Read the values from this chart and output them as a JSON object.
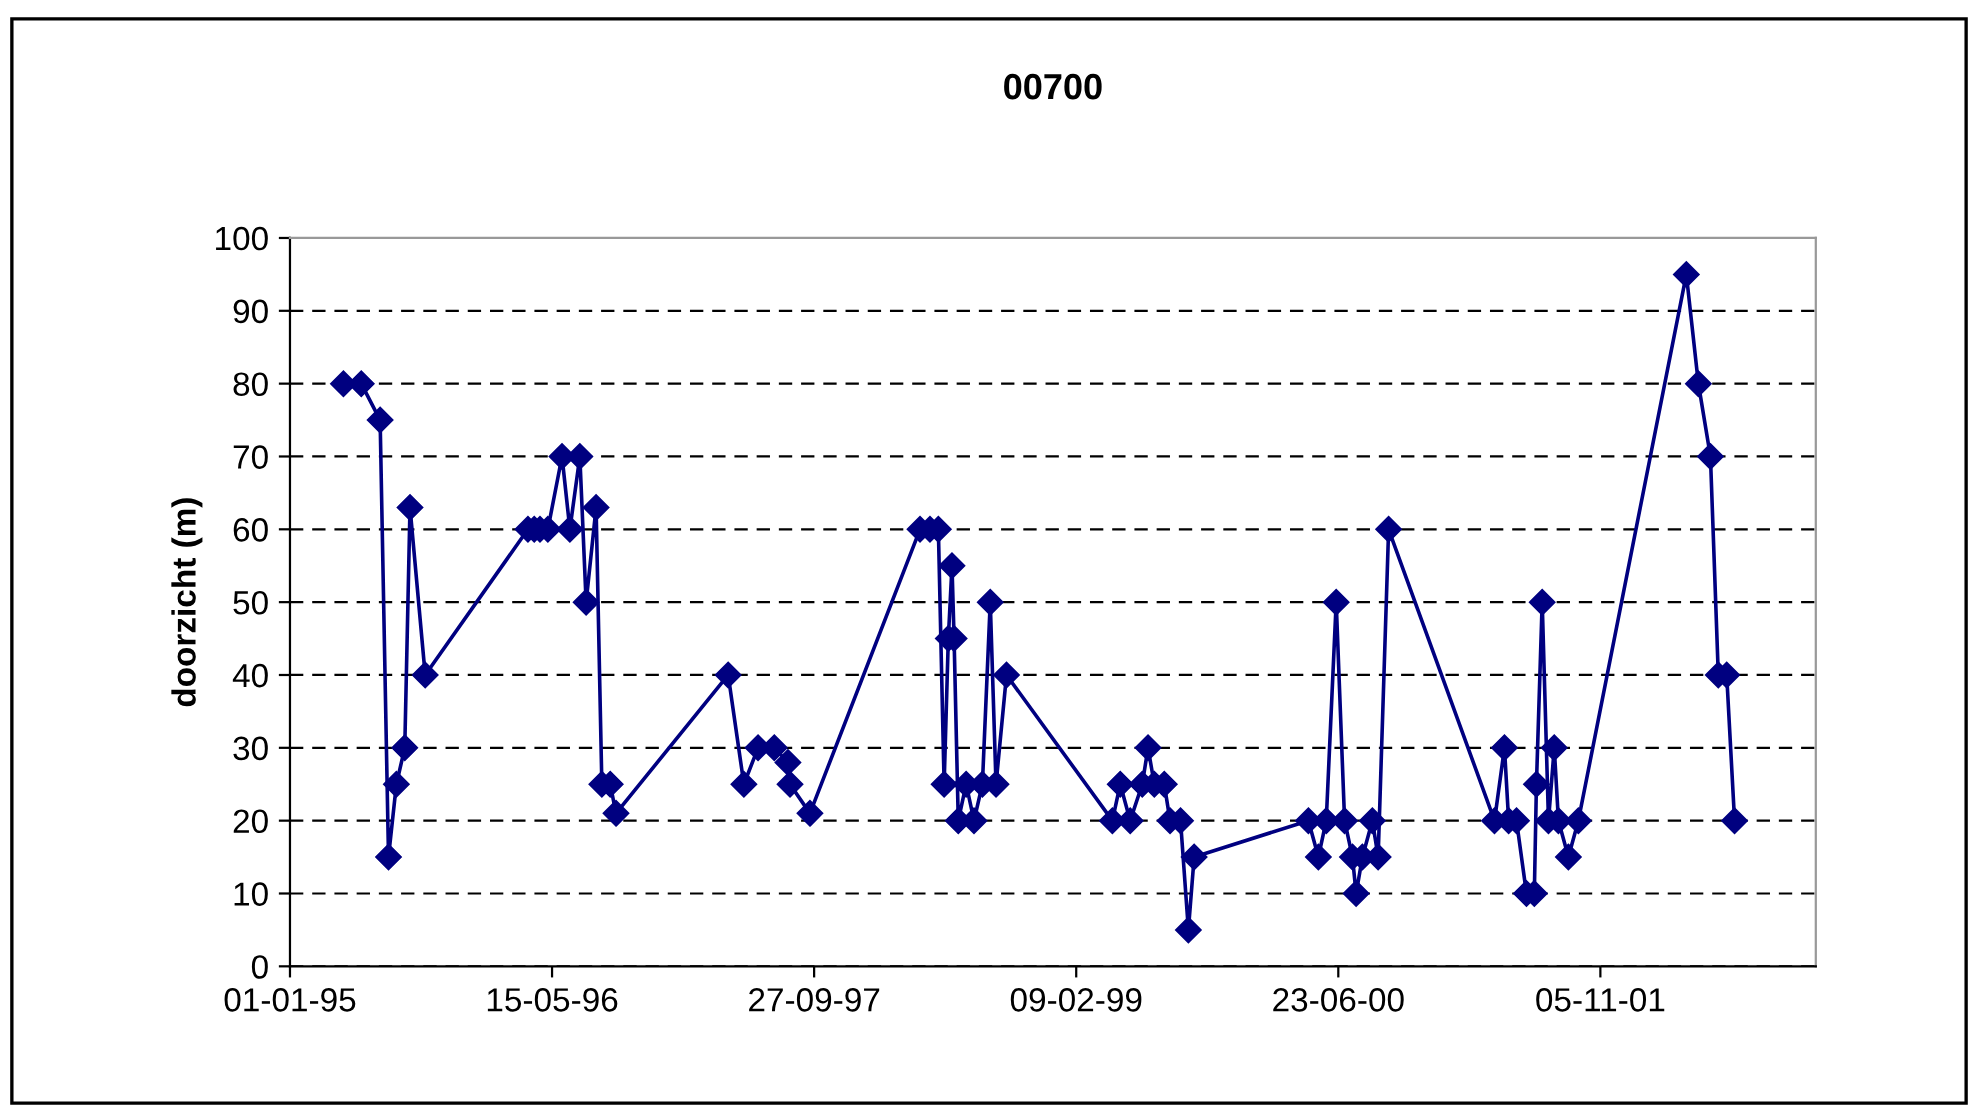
{
  "chart_data": {
    "type": "line",
    "title": "00700",
    "ylabel": "doorzicht (m)",
    "x": [
      "1995-04-13",
      "1995-05-17",
      "1995-06-22",
      "1995-07-08",
      "1995-07-23",
      "1995-08-08",
      "1995-08-18",
      "1995-09-16",
      "1996-03-30",
      "1996-04-11",
      "1996-04-22",
      "1996-05-07",
      "1996-06-03",
      "1996-06-18",
      "1996-07-07",
      "1996-07-19",
      "1996-08-07",
      "1996-08-18",
      "1996-09-03",
      "1996-09-14",
      "1997-04-16",
      "1997-05-16",
      "1997-06-12",
      "1997-07-13",
      "1997-08-08",
      "1997-08-12",
      "1997-09-19",
      "1998-04-17",
      "1998-05-06",
      "1998-05-22",
      "1998-06-02",
      "1998-06-10",
      "1998-06-17",
      "1998-06-21",
      "1998-06-29",
      "1998-07-14",
      "1998-07-29",
      "1998-08-14",
      "1998-08-29",
      "1998-09-09",
      "1998-09-29",
      "1999-04-19",
      "1999-05-04",
      "1999-05-23",
      "1999-06-15",
      "1999-06-26",
      "1999-07-08",
      "1999-07-27",
      "1999-08-07",
      "1999-08-27",
      "1999-09-11",
      "1999-09-22",
      "2000-04-27",
      "2000-05-16",
      "2000-05-31",
      "2000-06-19",
      "2000-07-05",
      "2000-07-20",
      "2000-07-27",
      "2000-08-08",
      "2000-08-27",
      "2000-09-07",
      "2000-09-27",
      "2001-04-17",
      "2001-05-06",
      "2001-05-14",
      "2001-05-29",
      "2001-06-17",
      "2001-07-02",
      "2001-07-06",
      "2001-07-17",
      "2001-07-29",
      "2001-08-09",
      "2001-08-17",
      "2001-09-05",
      "2001-09-24",
      "2002-04-18",
      "2002-05-11",
      "2002-06-03",
      "2002-06-18",
      "2002-07-04",
      "2002-07-19"
    ],
    "series": [
      {
        "color": "#000080",
        "values": [
          80,
          80,
          75,
          15,
          25,
          30,
          63,
          40,
          60,
          60,
          60,
          60,
          70,
          60,
          70,
          50,
          63,
          25,
          25,
          21,
          40,
          25,
          30,
          30,
          28,
          25,
          21,
          60,
          60,
          60,
          25,
          45,
          55,
          45,
          20,
          25,
          20,
          25,
          50,
          25,
          40,
          20,
          25,
          20,
          25,
          30,
          25,
          25,
          20,
          20,
          5,
          15,
          20,
          15,
          20,
          50,
          20,
          15,
          10,
          15,
          20,
          15,
          60,
          20,
          30,
          20,
          20,
          10,
          10,
          25,
          50,
          20,
          30,
          20,
          15,
          20,
          95,
          80,
          70,
          40,
          40,
          20
        ]
      }
    ],
    "xlim": [
      "1995-01-01",
      "2002-12-21"
    ],
    "xticks": [
      {
        "value": "1995-01-01",
        "label": "01-01-95"
      },
      {
        "value": "1996-05-15",
        "label": "15-05-96"
      },
      {
        "value": "1997-09-27",
        "label": "27-09-97"
      },
      {
        "value": "1999-02-09",
        "label": "09-02-99"
      },
      {
        "value": "2000-06-23",
        "label": "23-06-00"
      },
      {
        "value": "2001-11-05",
        "label": "05-11-01"
      }
    ],
    "ylim": [
      0,
      100
    ],
    "yticks": [
      0,
      10,
      20,
      30,
      40,
      50,
      60,
      70,
      80,
      90,
      100
    ],
    "grid": "y",
    "legend": false,
    "marker": "diamond",
    "line_style": "solid"
  }
}
